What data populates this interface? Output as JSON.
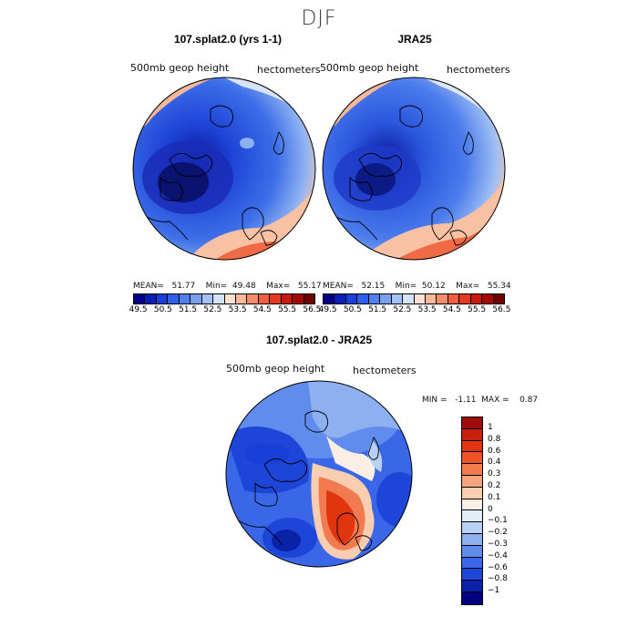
{
  "page": {
    "season_title": "DJF"
  },
  "panels": {
    "model": {
      "title": "107.splat2.0 (yrs 1-1)",
      "variable": "500mb geop height",
      "units": "hectometers",
      "stats": "MEAN=   51.77    Min=  49.48    Max=   55.17"
    },
    "obs": {
      "title": "JRA25",
      "variable": "500mb geop height",
      "units": "hectometers",
      "stats": "MEAN=   52.15    Min=  50.12    Max=   55.34"
    },
    "diff": {
      "title": "107.splat2.0 - JRA25",
      "variable": "500mb geop height",
      "units": "hectometers",
      "stats": "MIN =   -1.11  MAX =    0.87"
    }
  },
  "colorbars": {
    "field": {
      "labels": [
        "49.5",
        "50.5",
        "51.5",
        "52.5",
        "53.5",
        "54.5",
        "55.5",
        "56.5"
      ],
      "colors": [
        "#00008b",
        "#0a1fb4",
        "#1a3fd6",
        "#2f5fe8",
        "#4f80f0",
        "#79a0f2",
        "#a6c2f5",
        "#d3e3f8",
        "#fce2d2",
        "#f8b99a",
        "#f48d6a",
        "#ee6040",
        "#e43a21",
        "#c91a10",
        "#a20a05",
        "#6e0000"
      ]
    },
    "diff": {
      "labels": [
        "1",
        "0.8",
        "0.6",
        "0.4",
        "0.3",
        "0.2",
        "0.1",
        "0",
        "−0.1",
        "−0.2",
        "−0.3",
        "−0.4",
        "−0.6",
        "−0.8",
        "−1"
      ],
      "colors": [
        "#a10d0d",
        "#c9200f",
        "#e0350f",
        "#ee5429",
        "#f27a4f",
        "#f6a37f",
        "#f9cdb0",
        "#fbeee4",
        "#e2ecfa",
        "#b8d0f5",
        "#8cb0f0",
        "#5f8ced",
        "#3a67e8",
        "#1d45d7",
        "#0a22a8",
        "#000080"
      ]
    }
  }
}
